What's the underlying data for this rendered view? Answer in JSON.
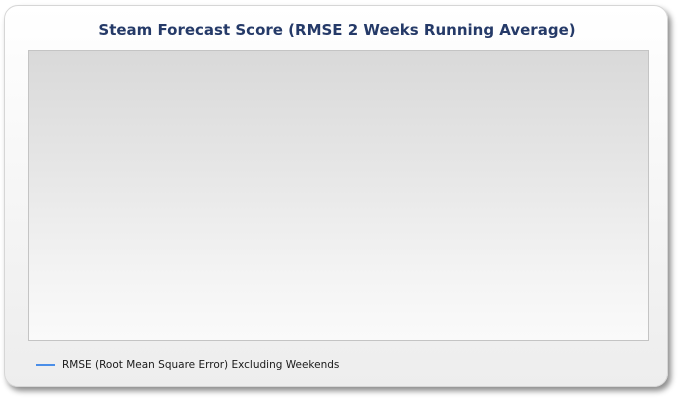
{
  "colors": {
    "title": "#253a68",
    "series_line": "#4a8ee8"
  },
  "chart_data": {
    "type": "line",
    "title": "Steam Forecast Score (RMSE 2 Weeks Running Average)",
    "xlabel": "",
    "ylabel": "",
    "grid": false,
    "legend_position": "bottom-left",
    "x": [],
    "series": [
      {
        "name": "RMSE (Root Mean Square Error) Excluding Weekends",
        "values": []
      }
    ]
  }
}
